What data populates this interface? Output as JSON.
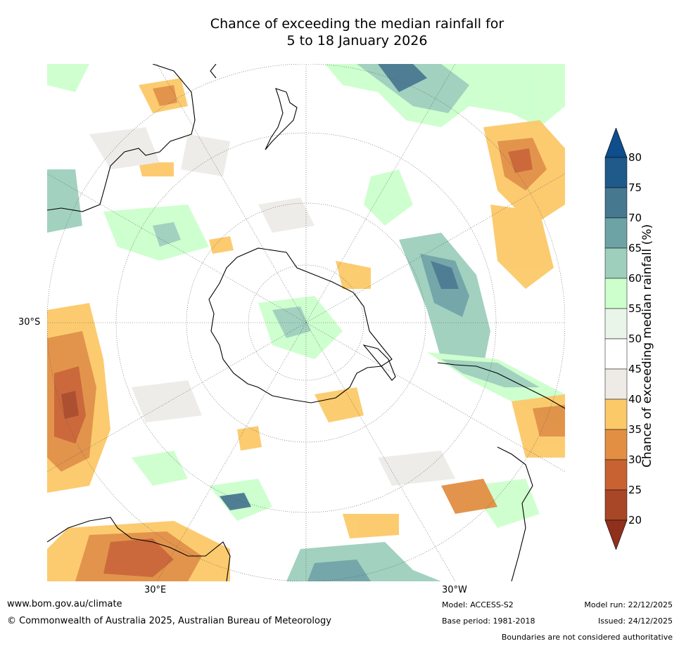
{
  "title_line1": "Chance of exceeding the median rainfall for",
  "title_line2": "5 to 18 January 2026",
  "axis_labels": {
    "lat": "30°S",
    "lon_left": "30°E",
    "lon_right": "30°W"
  },
  "colorbar": {
    "label": "Chance of exceeding median rainfall (%)",
    "ticks": [
      "80",
      "75",
      "70",
      "65",
      "60",
      "55",
      "50",
      "45",
      "40",
      "35",
      "30",
      "25",
      "20"
    ],
    "colors": {
      "c75_80": "#1f5a8a",
      "c70_75": "#46788f",
      "c65_70": "#6ea3a6",
      "c60_65": "#9ecfbd",
      "c55_60": "#ccffcc",
      "c50_55": "#eaf5ea",
      "c45_50": "#ffffff",
      "c40_45": "#eeebe7",
      "c35_40": "#fcc969",
      "c30_35": "#e28f43",
      "c25_30": "#c96232",
      "c20_25": "#a84727",
      "above": "#0f4d8c",
      "below": "#8f2f1c"
    }
  },
  "footer": {
    "website": "www.bom.gov.au/climate",
    "copyright": "© Commonwealth of Australia 2025, Australian Bureau of Meteorology",
    "model": "Model: ACCESS-S2",
    "base_period": "Base period: 1981-2018",
    "model_run": "Model run: 22/12/2025",
    "issued": "Issued: 24/12/2025",
    "disclaimer": "Boundaries are not considered authoritative"
  }
}
